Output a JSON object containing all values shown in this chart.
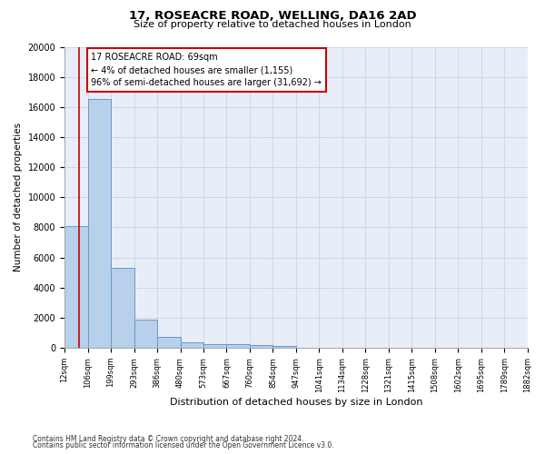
{
  "title1": "17, ROSEACRE ROAD, WELLING, DA16 2AD",
  "title2": "Size of property relative to detached houses in London",
  "xlabel": "Distribution of detached houses by size in London",
  "ylabel": "Number of detached properties",
  "annotation_title": "17 ROSEACRE ROAD: 69sqm",
  "annotation_line1": "← 4% of detached houses are smaller (1,155)",
  "annotation_line2": "96% of semi-detached houses are larger (31,692) →",
  "footer1": "Contains HM Land Registry data © Crown copyright and database right 2024.",
  "footer2": "Contains public sector information licensed under the Open Government Licence v3.0.",
  "property_size": 69,
  "bin_edges": [
    12,
    106,
    199,
    293,
    386,
    480,
    573,
    667,
    760,
    854,
    947,
    1041,
    1134,
    1228,
    1321,
    1415,
    1508,
    1602,
    1695,
    1789,
    1882
  ],
  "bar_heights": [
    8100,
    16550,
    5300,
    1850,
    700,
    350,
    275,
    225,
    180,
    130,
    0,
    0,
    0,
    0,
    0,
    0,
    0,
    0,
    0,
    0
  ],
  "bar_color": "#b8d0ea",
  "bar_edge_color": "#6699cc",
  "red_line_color": "#cc0000",
  "annotation_box_color": "#cc0000",
  "grid_color": "#c8d4e4",
  "background_color": "#e8eef8",
  "ylim": [
    0,
    20000
  ],
  "yticks": [
    0,
    2000,
    4000,
    6000,
    8000,
    10000,
    12000,
    14000,
    16000,
    18000,
    20000
  ]
}
